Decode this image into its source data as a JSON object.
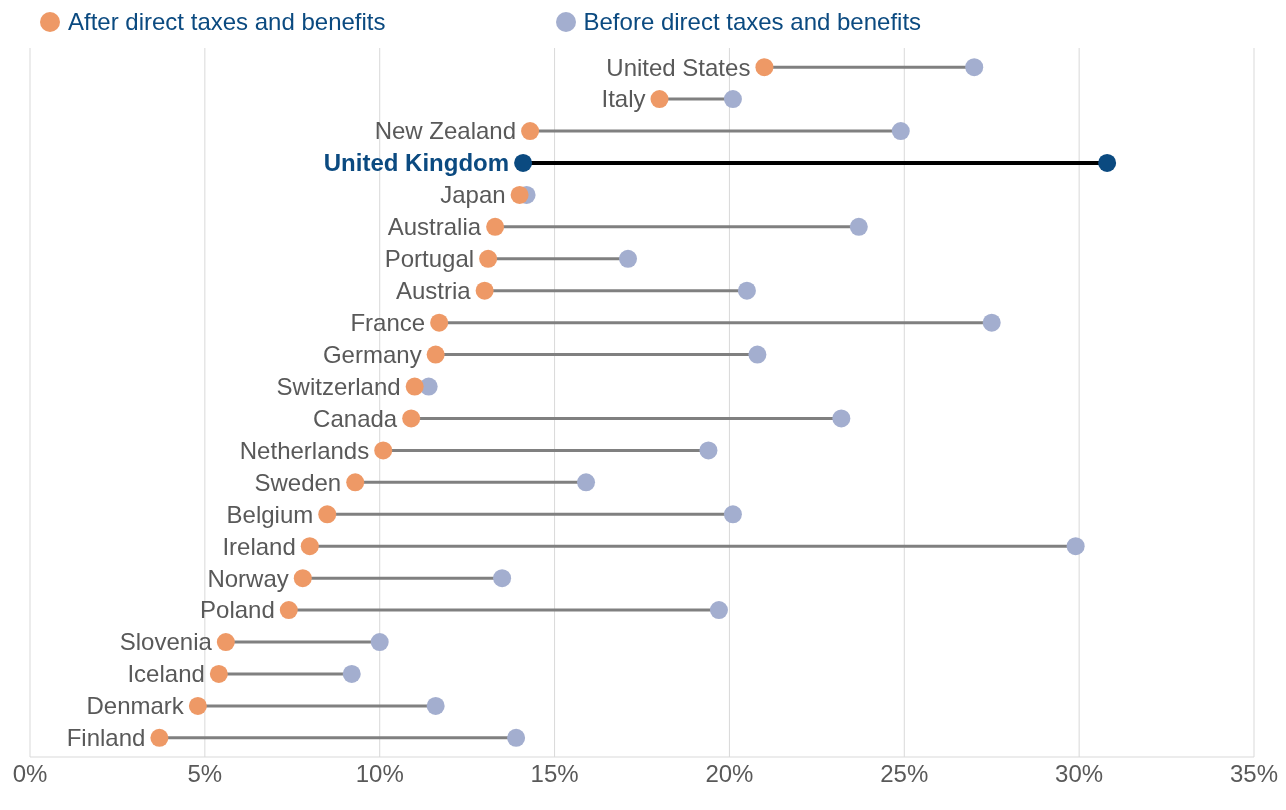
{
  "chart_data": {
    "type": "scatter",
    "orientation": "horizontal",
    "categories": [
      "United States",
      "Italy",
      "New Zealand",
      "United Kingdom",
      "Japan",
      "Australia",
      "Portugal",
      "Austria",
      "France",
      "Germany",
      "Switzerland",
      "Canada",
      "Netherlands",
      "Sweden",
      "Belgium",
      "Ireland",
      "Norway",
      "Poland",
      "Slovenia",
      "Iceland",
      "Denmark",
      "Finland"
    ],
    "series": [
      {
        "name": "After direct taxes and benefits",
        "color": "#ee9966",
        "colors": [
          "#ee9966",
          "#ee9966",
          "#ee9966",
          "#0b4a80",
          "#ee9966",
          "#ee9966",
          "#ee9966",
          "#ee9966",
          "#ee9966",
          "#ee9966",
          "#ee9966",
          "#ee9966",
          "#ee9966",
          "#ee9966",
          "#ee9966",
          "#ee9966",
          "#ee9966",
          "#ee9966",
          "#ee9966",
          "#ee9966",
          "#ee9966",
          "#ee9966"
        ],
        "values": [
          21.0,
          18.0,
          14.3,
          14.1,
          14.0,
          13.3,
          13.1,
          13.0,
          11.7,
          11.6,
          11.0,
          10.9,
          10.1,
          9.3,
          8.5,
          8.0,
          7.8,
          7.4,
          5.6,
          5.4,
          4.8,
          3.7
        ]
      },
      {
        "name": "Before direct taxes and benefits",
        "color": "#a3aecf",
        "colors": [
          "#a3aecf",
          "#a3aecf",
          "#a3aecf",
          "#0b4a80",
          "#a3aecf",
          "#a3aecf",
          "#a3aecf",
          "#a3aecf",
          "#a3aecf",
          "#a3aecf",
          "#a3aecf",
          "#a3aecf",
          "#a3aecf",
          "#a3aecf",
          "#a3aecf",
          "#a3aecf",
          "#a3aecf",
          "#a3aecf",
          "#a3aecf",
          "#a3aecf",
          "#a3aecf",
          "#a3aecf"
        ],
        "values": [
          27.0,
          20.1,
          24.9,
          30.8,
          14.2,
          23.7,
          17.1,
          20.5,
          27.5,
          20.8,
          11.4,
          23.2,
          19.4,
          15.9,
          20.1,
          29.9,
          13.5,
          19.7,
          10.0,
          9.2,
          11.6,
          13.9
        ]
      }
    ],
    "xlim": [
      0,
      35
    ],
    "xticks": [
      {
        "value": 0,
        "label": "0%"
      },
      {
        "value": 5,
        "label": "5%"
      },
      {
        "value": 10,
        "label": "10%"
      },
      {
        "value": 15,
        "label": "15%"
      },
      {
        "value": 20,
        "label": "20%"
      },
      {
        "value": 25,
        "label": "25%"
      },
      {
        "value": 30,
        "label": "30%"
      },
      {
        "value": 35,
        "label": "35%"
      }
    ],
    "grid": "x",
    "legend": "top",
    "marker": "circle"
  }
}
